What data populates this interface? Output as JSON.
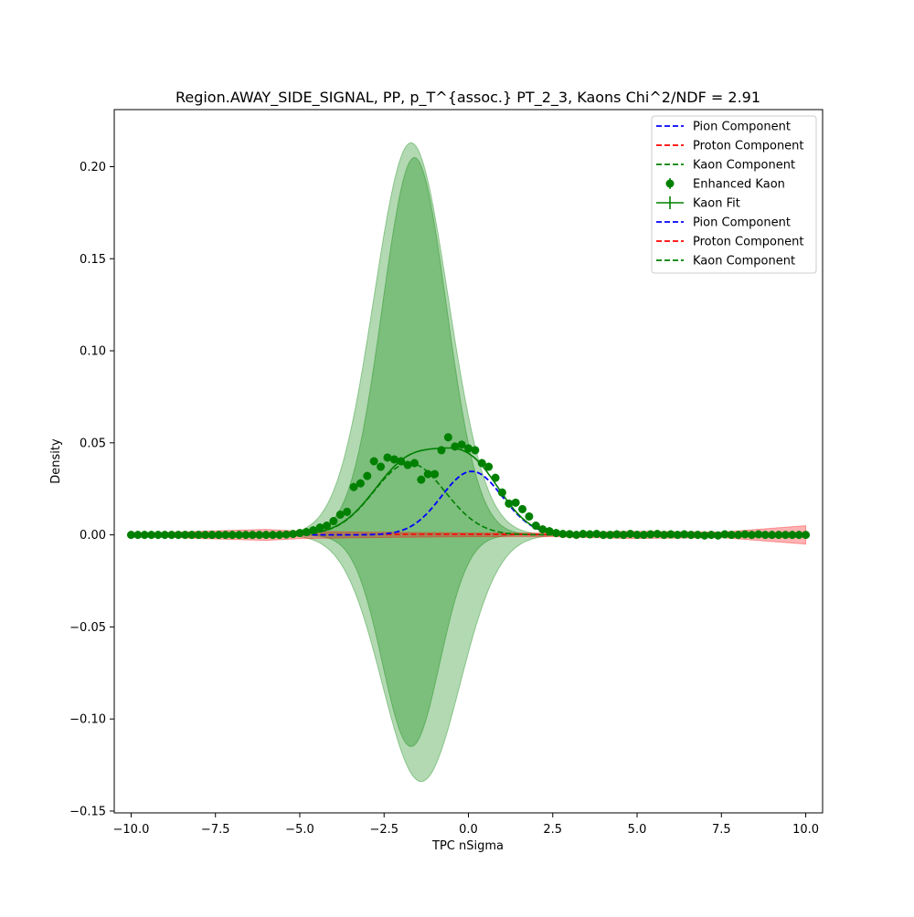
{
  "chart_data": {
    "type": "scatter",
    "title": "Region.AWAY_SIDE_SIGNAL, PP, p_T^{assoc.} PT_2_3, Kaons Chi^2/NDF = 2.91",
    "xlabel": "TPC nSigma",
    "ylabel": "Density",
    "xlim": [
      -10.5,
      10.5
    ],
    "ylim": [
      -0.151,
      0.231
    ],
    "xticks": [
      {
        "value": -10,
        "label": "−10.0"
      },
      {
        "value": -7.5,
        "label": "−7.5"
      },
      {
        "value": -5,
        "label": "−5.0"
      },
      {
        "value": -2.5,
        "label": "−2.5"
      },
      {
        "value": 0,
        "label": "0.0"
      },
      {
        "value": 2.5,
        "label": "2.5"
      },
      {
        "value": 5,
        "label": "5.0"
      },
      {
        "value": 7.5,
        "label": "7.5"
      },
      {
        "value": 10,
        "label": "10.0"
      }
    ],
    "yticks": [
      {
        "value": -0.15,
        "label": "−0.15"
      },
      {
        "value": -0.1,
        "label": "−0.10"
      },
      {
        "value": -0.05,
        "label": "−0.05"
      },
      {
        "value": 0.0,
        "label": "0.00"
      },
      {
        "value": 0.05,
        "label": "0.05"
      },
      {
        "value": 0.1,
        "label": "0.10"
      },
      {
        "value": 0.15,
        "label": "0.15"
      },
      {
        "value": 0.2,
        "label": "0.20"
      }
    ],
    "grid": false,
    "legend_position": "top-right",
    "legend": [
      {
        "label": "Pion Component",
        "style": "dashed",
        "color": "#0000ff"
      },
      {
        "label": "Proton Component",
        "style": "dashed",
        "color": "#ff0000"
      },
      {
        "label": "Kaon Component",
        "style": "dashed",
        "color": "#008000"
      },
      {
        "label": "Enhanced Kaon",
        "style": "marker",
        "color": "#008000"
      },
      {
        "label": "Kaon Fit",
        "style": "errorline",
        "color": "#008000"
      },
      {
        "label": "Pion Component",
        "style": "dashed",
        "color": "#0000ff"
      },
      {
        "label": "Proton Component",
        "style": "dashed",
        "color": "#ff0000"
      },
      {
        "label": "Kaon Component",
        "style": "dashed",
        "color": "#008000"
      }
    ],
    "components": {
      "pion": {
        "amplitude": 0.0345,
        "mean": 0.1,
        "sigma": 0.9
      },
      "kaon": {
        "amplitude": 0.039,
        "mean": -1.75,
        "sigma": 1.05
      },
      "proton": {
        "amplitude": 0.0003,
        "mean": -1.0,
        "sigma": 3.0
      },
      "kaon_fit": {
        "approx": "pion + kaon + proton"
      }
    },
    "bands": [
      {
        "name": "kaon-band-wide",
        "color": "#008000",
        "opacity": 0.3,
        "upper": {
          "amplitude": 0.213,
          "mean": -1.7,
          "sigma": 1.1
        },
        "lower": {
          "amplitude": -0.134,
          "mean": -1.4,
          "sigma": 1.15
        }
      },
      {
        "name": "kaon-band-inner",
        "color": "#008000",
        "opacity": 0.3,
        "upper": {
          "amplitude": 0.205,
          "mean": -1.6,
          "sigma": 0.95
        },
        "lower": {
          "amplitude": -0.115,
          "mean": -1.7,
          "sigma": 0.85
        }
      },
      {
        "name": "proton-band",
        "color": "#ff0000",
        "opacity": 0.3,
        "half_width": [
          [
            -10,
            0.0005
          ],
          [
            -7.9,
            0.002
          ],
          [
            -6.0,
            0.003
          ],
          [
            -5.0,
            0.002
          ],
          [
            -3.0,
            0.0015
          ],
          [
            0,
            0.001
          ],
          [
            2.5,
            0.001
          ],
          [
            4.8,
            0.002
          ],
          [
            7.5,
            0.0015
          ],
          [
            10.0,
            0.005
          ]
        ]
      }
    ],
    "series": [
      {
        "name": "Enhanced Kaon",
        "x": [
          -10.0,
          -9.8,
          -9.6,
          -9.4,
          -9.2,
          -9.0,
          -8.8,
          -8.6,
          -8.4,
          -8.2,
          -8.0,
          -7.8,
          -7.6,
          -7.4,
          -7.2,
          -7.0,
          -6.8,
          -6.6,
          -6.4,
          -6.2,
          -6.0,
          -5.8,
          -5.6,
          -5.4,
          -5.2,
          -5.0,
          -4.8,
          -4.6,
          -4.4,
          -4.2,
          -4.0,
          -3.8,
          -3.6,
          -3.4,
          -3.2,
          -3.0,
          -2.8,
          -2.6,
          -2.4,
          -2.2,
          -2.0,
          -1.8,
          -1.6,
          -1.4,
          -1.2,
          -1.0,
          -0.8,
          -0.6,
          -0.4,
          -0.2,
          0.0,
          0.2,
          0.4,
          0.6,
          0.8,
          1.0,
          1.2,
          1.4,
          1.6,
          1.8,
          2.0,
          2.2,
          2.4,
          2.6,
          2.8,
          3.0,
          3.2,
          3.4,
          3.6,
          3.8,
          4.0,
          4.2,
          4.4,
          4.6,
          4.8,
          5.0,
          5.2,
          5.4,
          5.6,
          5.8,
          6.0,
          6.2,
          6.4,
          6.6,
          6.8,
          7.0,
          7.2,
          7.4,
          7.6,
          7.8,
          8.0,
          8.2,
          8.4,
          8.6,
          8.8,
          9.0,
          9.2,
          9.4,
          9.6,
          9.8,
          10.0
        ],
        "y": [
          0.0,
          0.0,
          0.0,
          0.0,
          0.0,
          0.0,
          0.0,
          0.0,
          0.0,
          0.0,
          0.0,
          0.0,
          0.0,
          0.0,
          0.0,
          0.0,
          0.0,
          0.0,
          0.0,
          0.0,
          0.0,
          0.0,
          0.0,
          0.0002,
          0.0005,
          0.001,
          0.0015,
          0.0025,
          0.004,
          0.005,
          0.0075,
          0.011,
          0.0125,
          0.026,
          0.028,
          0.032,
          0.04,
          0.037,
          0.042,
          0.041,
          0.04,
          0.038,
          0.039,
          0.03,
          0.033,
          0.033,
          0.046,
          0.053,
          0.048,
          0.049,
          0.047,
          0.046,
          0.039,
          0.037,
          0.031,
          0.023,
          0.017,
          0.0175,
          0.014,
          0.01,
          0.005,
          0.003,
          0.002,
          0.001,
          0.0005,
          0.0004,
          0.0,
          0.0005,
          0.0003,
          0.0005,
          0.0,
          0.0,
          0.0003,
          0.0,
          0.0005,
          0.0,
          0.0,
          0.0003,
          0.0005,
          0.0,
          0.0003,
          0.0,
          0.0003,
          0.0,
          0.0,
          -0.0003,
          0.0,
          -0.0003,
          0.0003,
          0.0,
          0.0,
          0.0003,
          0.0,
          0.0003,
          0.0,
          0.0,
          0.0,
          0.0,
          0.0,
          0.0,
          0.0
        ],
        "yerr": 0.0022
      }
    ]
  }
}
